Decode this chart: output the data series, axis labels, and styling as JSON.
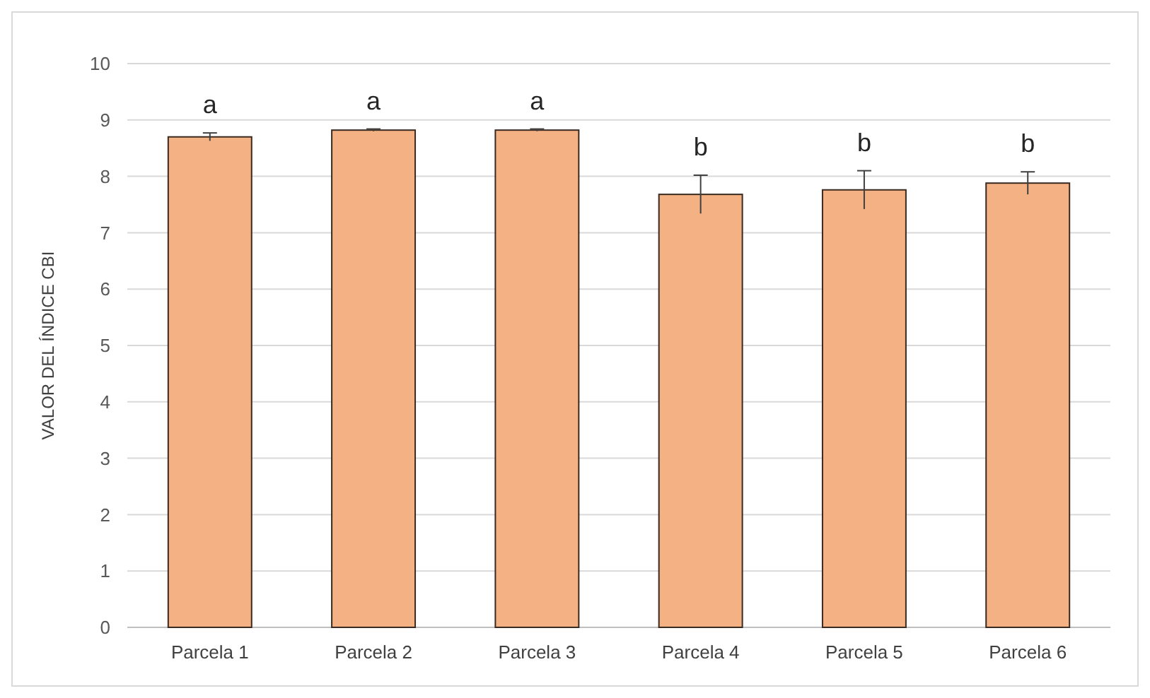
{
  "chart_data": {
    "type": "bar",
    "ylabel": "VALOR DEL ÍNDICE CBI",
    "categories": [
      "Parcela 1",
      "Parcela 2",
      "Parcela 3",
      "Parcela 4",
      "Parcela 5",
      "Parcela 6"
    ],
    "values": [
      8.7,
      8.82,
      8.82,
      7.68,
      7.76,
      7.88
    ],
    "errors": [
      0.07,
      0.02,
      0.02,
      0.34,
      0.34,
      0.2
    ],
    "color": "#f4b183",
    "ylim": [
      0,
      10
    ],
    "yticks": [
      0,
      1,
      2,
      3,
      4,
      5,
      6,
      7,
      8,
      9,
      10
    ],
    "grid": "y",
    "annotations": [
      "a",
      "a",
      "a",
      "b",
      "b",
      "b"
    ]
  }
}
